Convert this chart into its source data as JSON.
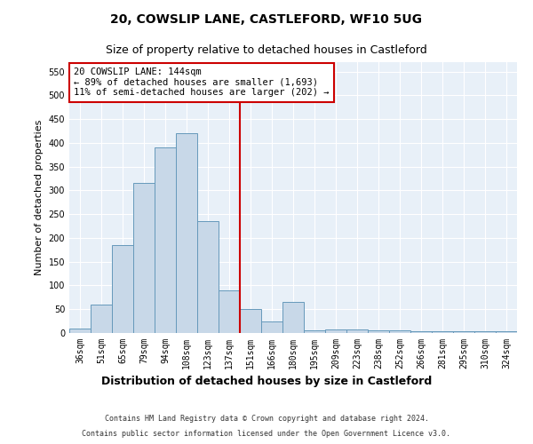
{
  "title1": "20, COWSLIP LANE, CASTLEFORD, WF10 5UG",
  "title2": "Size of property relative to detached houses in Castleford",
  "xlabel": "Distribution of detached houses by size in Castleford",
  "ylabel": "Number of detached properties",
  "categories": [
    "36sqm",
    "51sqm",
    "65sqm",
    "79sqm",
    "94sqm",
    "108sqm",
    "123sqm",
    "137sqm",
    "151sqm",
    "166sqm",
    "180sqm",
    "195sqm",
    "209sqm",
    "223sqm",
    "238sqm",
    "252sqm",
    "266sqm",
    "281sqm",
    "295sqm",
    "310sqm",
    "324sqm"
  ],
  "values": [
    10,
    60,
    185,
    315,
    390,
    420,
    235,
    90,
    50,
    25,
    65,
    5,
    8,
    8,
    5,
    5,
    3,
    3,
    3,
    3,
    3
  ],
  "bar_color": "#c8d8e8",
  "bar_edge_color": "#6699bb",
  "vline_x_index": 7.5,
  "vline_color": "#cc0000",
  "annotation_text": "20 COWSLIP LANE: 144sqm\n← 89% of detached houses are smaller (1,693)\n11% of semi-detached houses are larger (202) →",
  "annotation_box_color": "#ffffff",
  "annotation_box_edge_color": "#cc0000",
  "footer1": "Contains HM Land Registry data © Crown copyright and database right 2024.",
  "footer2": "Contains public sector information licensed under the Open Government Licence v3.0.",
  "ylim": [
    0,
    570
  ],
  "yticks": [
    0,
    50,
    100,
    150,
    200,
    250,
    300,
    350,
    400,
    450,
    500,
    550
  ],
  "background_color": "#e8f0f8",
  "fig_background": "#ffffff",
  "title1_fontsize": 10,
  "title2_fontsize": 9,
  "ylabel_fontsize": 8,
  "xlabel_fontsize": 9,
  "tick_fontsize": 7,
  "annotation_fontsize": 7.5,
  "footer_fontsize": 6
}
